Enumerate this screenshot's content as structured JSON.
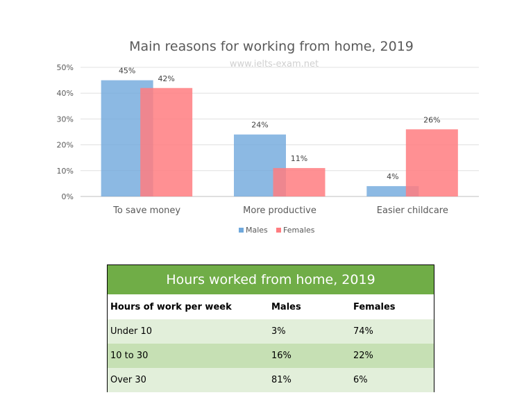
{
  "chart_data": [
    {
      "type": "bar",
      "title": "Main reasons for working from home, 2019",
      "watermark": "www.ielts-exam.net",
      "categories": [
        "To save money",
        "More productive",
        "Easier childcare"
      ],
      "series": [
        {
          "name": "Males",
          "values": [
            45,
            24,
            4
          ],
          "labels": [
            "45%",
            "24%",
            "4%"
          ],
          "color": "#6fa8dc"
        },
        {
          "name": "Females",
          "values": [
            42,
            11,
            26
          ],
          "labels": [
            "42%",
            "11%",
            "26%"
          ],
          "color": "#ff7c80"
        }
      ],
      "yticks": [
        "0%",
        "10%",
        "20%",
        "30%",
        "40%",
        "50%"
      ],
      "ylim": [
        0,
        50
      ],
      "legend_position": "bottom",
      "grid": true
    },
    {
      "type": "table",
      "title": "Hours worked from home, 2019",
      "header_color": "#70ad47",
      "columns": [
        "Hours of work per week",
        "Males",
        "Females"
      ],
      "rows": [
        [
          "Under 10",
          "3%",
          "74%"
        ],
        [
          "10 to 30",
          "16%",
          "22%"
        ],
        [
          "Over 30",
          "81%",
          "6%"
        ]
      ]
    }
  ]
}
